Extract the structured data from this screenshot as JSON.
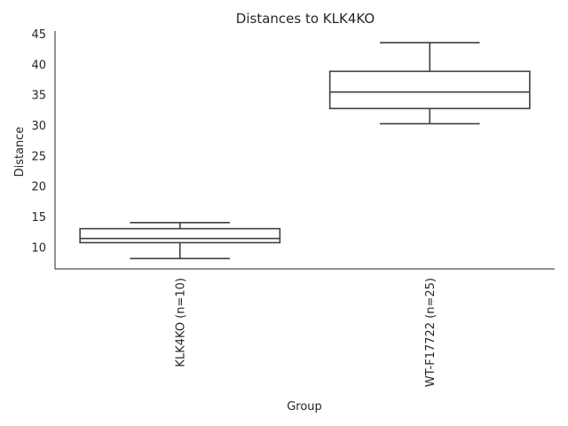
{
  "chart_data": {
    "type": "box",
    "title": "Distances to KLK4KO",
    "xlabel": "Group",
    "ylabel": "Distance",
    "ylim": [
      6.5,
      45.5
    ],
    "yticks": [
      10,
      15,
      20,
      25,
      30,
      35,
      40,
      45
    ],
    "grid": false,
    "legend": "none",
    "categories": [
      "KLK4KO (n=10)",
      "WT-F17722 (n=25)"
    ],
    "boxes": [
      {
        "whisker_low": 8.2,
        "q1": 10.8,
        "median": 11.5,
        "q3": 13.1,
        "whisker_high": 14.1
      },
      {
        "whisker_low": 30.3,
        "q1": 32.8,
        "median": 35.5,
        "q3": 38.9,
        "whisker_high": 43.6
      }
    ],
    "colors": {
      "line": "#3f3f3f",
      "fill": "#ffffff",
      "text": "#262626"
    }
  }
}
